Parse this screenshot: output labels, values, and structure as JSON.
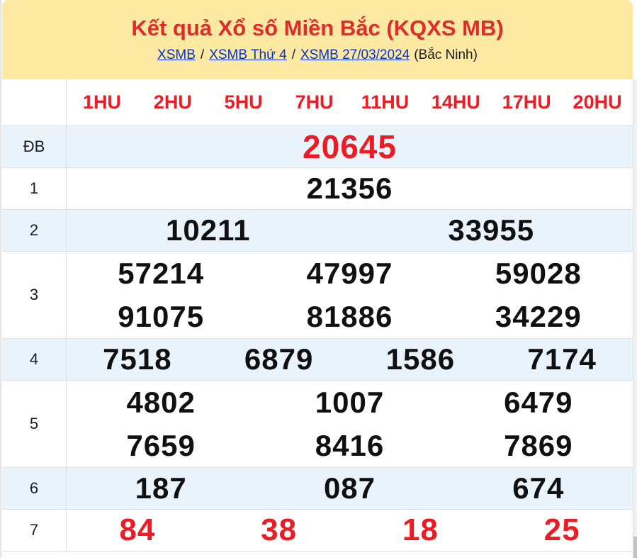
{
  "header": {
    "title": "Kết quả Xổ số Miền Bắc (KQXS MB)",
    "separator": "/",
    "breadcrumb": [
      {
        "label": "XSMB"
      },
      {
        "label": "XSMB Thứ 4"
      },
      {
        "label": "XSMB 27/03/2024"
      }
    ],
    "region": "(Bắc Ninh)"
  },
  "table": {
    "column_headers": [
      "1HU",
      "2HU",
      "5HU",
      "7HU",
      "11HU",
      "14HU",
      "17HU",
      "20HU"
    ],
    "rows": [
      {
        "label": "ĐB",
        "highlight": true,
        "style": "special",
        "lines": [
          [
            "20645"
          ]
        ]
      },
      {
        "label": "1",
        "highlight": false,
        "style": "normal",
        "lines": [
          [
            "21356"
          ]
        ]
      },
      {
        "label": "2",
        "highlight": true,
        "style": "normal",
        "lines": [
          [
            "10211",
            "33955"
          ]
        ]
      },
      {
        "label": "3",
        "highlight": false,
        "style": "normal",
        "lines": [
          [
            "57214",
            "47997",
            "59028"
          ],
          [
            "91075",
            "81886",
            "34229"
          ]
        ]
      },
      {
        "label": "4",
        "highlight": true,
        "style": "normal",
        "lines": [
          [
            "7518",
            "6879",
            "1586",
            "7174"
          ]
        ]
      },
      {
        "label": "5",
        "highlight": false,
        "style": "normal",
        "lines": [
          [
            "4802",
            "1007",
            "6479"
          ],
          [
            "7659",
            "8416",
            "7869"
          ]
        ]
      },
      {
        "label": "6",
        "highlight": true,
        "style": "normal",
        "lines": [
          [
            "187",
            "087",
            "674"
          ]
        ]
      },
      {
        "label": "7",
        "highlight": false,
        "style": "red",
        "lines": [
          [
            "84",
            "38",
            "18",
            "25"
          ]
        ]
      }
    ]
  },
  "colors": {
    "banner_bg": "#FDE9A2",
    "title_red": "#E02B2B",
    "accent_red": "#EC1C24",
    "link_blue": "#0533CB",
    "row_highlight": "#E9F3FC",
    "border": "#DCDFE3"
  }
}
